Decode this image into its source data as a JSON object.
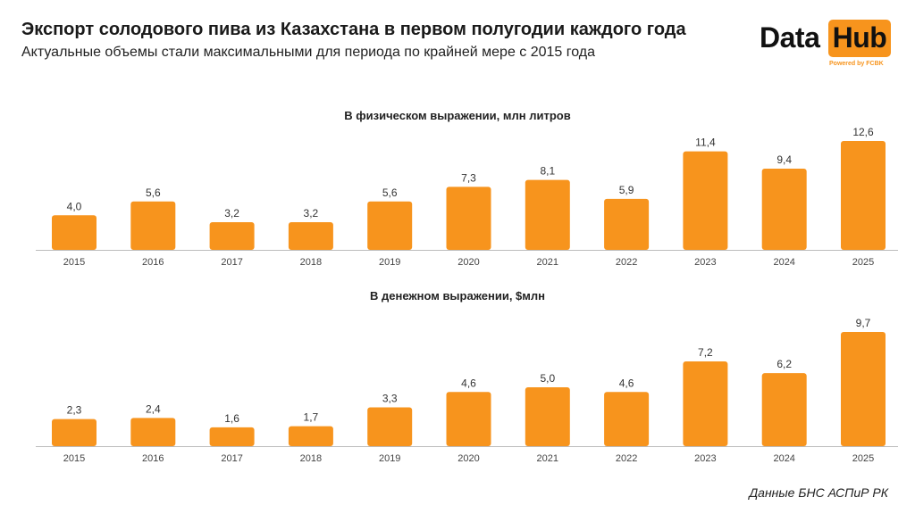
{
  "header": {
    "title": "Экспорт солодового пива из Казахстана в первом полугодии каждого года",
    "subtitle": "Актуальные объемы стали максимальными для периода по крайней мере с 2015 года"
  },
  "logo": {
    "word1": "Data",
    "word2": "Hub",
    "powered": "Powered by FCBK",
    "accent_color": "#f7941d"
  },
  "source": "Данные БНС АСПиР РК",
  "bar_color": "#f7941d",
  "chart_data": [
    {
      "type": "bar",
      "title": "В физическом выражении, млн литров",
      "categories": [
        "2015",
        "2016",
        "2017",
        "2018",
        "2019",
        "2020",
        "2021",
        "2022",
        "2023",
        "2024",
        "2025"
      ],
      "values": [
        4.0,
        5.6,
        3.2,
        3.2,
        5.6,
        7.3,
        8.1,
        5.9,
        11.4,
        9.4,
        12.6
      ],
      "value_labels": [
        "4,0",
        "5,6",
        "3,2",
        "3,2",
        "5,6",
        "7,3",
        "8,1",
        "5,9",
        "11,4",
        "9,4",
        "12,6"
      ],
      "ylim": [
        0,
        12.6
      ],
      "grid": false
    },
    {
      "type": "bar",
      "title": "В денежном выражении, $млн",
      "categories": [
        "2015",
        "2016",
        "2017",
        "2018",
        "2019",
        "2020",
        "2021",
        "2022",
        "2023",
        "2024",
        "2025"
      ],
      "values": [
        2.3,
        2.4,
        1.6,
        1.7,
        3.3,
        4.6,
        5.0,
        4.6,
        7.2,
        6.2,
        9.7
      ],
      "value_labels": [
        "2,3",
        "2,4",
        "1,6",
        "1,7",
        "3,3",
        "4,6",
        "5,0",
        "4,6",
        "7,2",
        "6,2",
        "9,7"
      ],
      "ylim": [
        0,
        9.7
      ],
      "grid": false
    }
  ]
}
